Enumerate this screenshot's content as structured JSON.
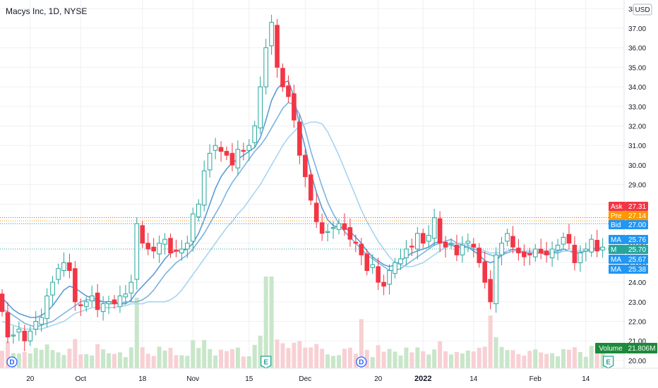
{
  "header": {
    "title": "Macys Inc, 1D, NYSE",
    "currency": "USD"
  },
  "colors": {
    "up": "#26a69a",
    "down": "#f23645",
    "up_body": "#26a69a",
    "down_body": "#f23645",
    "vol_up": "#c8e6c9",
    "vol_down": "#f8d0d4",
    "ma1": "#5b9bd5",
    "ma2": "#7cb3e0",
    "ma3": "#a8d4f0",
    "grid": "#eef0f3",
    "text": "#131722",
    "ask": "#f23645",
    "pre": "#ff9800",
    "bid": "#2196f3",
    "ma_badge": "#2196f3",
    "m_badge": "#26a69a",
    "volume_badge": "#1b8a3a"
  },
  "chart_data": {
    "type": "candlestick",
    "title": "Macys Inc, 1D, NYSE",
    "currency": "USD",
    "ylim": [
      19.6,
      38.3
    ],
    "y_ticks": [
      "38.00",
      "37.00",
      "36.00",
      "35.00",
      "34.00",
      "33.00",
      "32.00",
      "31.00",
      "30.00",
      "29.00",
      "28.00",
      "27.00",
      "26.00",
      "25.00",
      "24.00",
      "23.00",
      "22.00",
      "21.00",
      "20.00"
    ],
    "x_ticks": [
      {
        "label": "20",
        "index": 5
      },
      {
        "label": "Oct",
        "index": 14
      },
      {
        "label": "18",
        "index": 25
      },
      {
        "label": "Nov",
        "index": 34
      },
      {
        "label": "15",
        "index": 44
      },
      {
        "label": "Dec",
        "index": 54
      },
      {
        "label": "20",
        "index": 67
      },
      {
        "label": "2022",
        "index": 75,
        "bold": true
      },
      {
        "label": "14",
        "index": 84
      },
      {
        "label": "Feb",
        "index": 95
      },
      {
        "label": "14",
        "index": 104
      }
    ],
    "closes": [
      22.5,
      21.2,
      21.3,
      21.6,
      21.0,
      21.5,
      22.0,
      22.2,
      23.3,
      24.0,
      24.7,
      25.0,
      24.6,
      23.0,
      22.8,
      23.0,
      23.3,
      22.6,
      22.9,
      23.0,
      22.9,
      23.3,
      23.4,
      24.0,
      27.0,
      26.0,
      25.7,
      25.6,
      26.0,
      26.2,
      25.5,
      25.6,
      25.7,
      26.0,
      27.5,
      28.0,
      29.7,
      30.6,
      31.0,
      30.7,
      30.5,
      30.0,
      30.8,
      30.7,
      31.0,
      32.0,
      34.0,
      36.0,
      37.3,
      35.0,
      34.0,
      33.5,
      32.3,
      30.5,
      29.4,
      28.2,
      27.1,
      26.5,
      26.6,
      26.8,
      27.0,
      26.7,
      26.2,
      26.0,
      25.4,
      24.6,
      24.9,
      24.0,
      23.8,
      24.6,
      25.0,
      25.2,
      25.7,
      25.8,
      26.5,
      26.0,
      26.4,
      27.3,
      26.0,
      25.8,
      26.0,
      25.4,
      25.9,
      26.1,
      25.8,
      25.0,
      24.0,
      23.0,
      25.4,
      26.0,
      26.5,
      25.8,
      25.5,
      25.3,
      25.4,
      25.7,
      25.5,
      25.4,
      25.7,
      25.9,
      26.3,
      26.0,
      25.0,
      25.5,
      25.7,
      26.2,
      25.6,
      25.8
    ],
    "series": [
      {
        "name": "MA",
        "values": [
          23.2,
          22.9,
          22.6,
          22.4,
          22.3,
          22.2,
          22.2,
          22.3,
          22.5,
          22.8,
          23.2,
          23.6,
          23.8,
          23.7,
          23.5,
          23.3,
          23.2,
          23.1,
          23.0,
          23.0,
          23.0,
          22.9,
          22.9,
          23.1,
          23.5,
          23.8,
          24.1,
          24.4,
          24.8,
          25.2,
          25.5,
          25.6,
          25.6,
          25.7,
          26.0,
          26.5,
          27.2,
          28.0,
          28.8,
          29.4,
          29.8,
          30.1,
          30.3,
          30.5,
          30.7,
          30.9,
          31.4,
          32.3,
          33.3,
          33.9,
          34.2,
          34.3,
          33.5,
          32.0,
          30.9,
          29.6,
          28.6,
          27.8,
          27.2,
          26.9,
          26.8,
          26.8,
          26.6,
          26.3,
          26.0,
          25.6,
          25.3,
          25.1,
          24.9,
          24.8,
          24.9,
          25.1,
          25.3,
          25.5,
          25.6,
          25.7,
          25.8,
          26.0,
          26.1,
          26.0,
          25.9,
          25.8,
          25.8,
          25.8,
          25.6,
          25.4,
          25.1,
          25.0,
          25.1,
          25.4,
          25.6,
          25.7,
          25.6,
          25.5,
          25.5,
          25.5,
          25.5,
          25.4,
          25.5,
          25.6,
          25.7,
          25.6,
          25.5,
          25.5,
          25.6,
          25.7,
          25.76,
          25.76
        ]
      },
      {
        "name": "MA",
        "values": [
          22.6,
          22.5,
          22.3,
          22.1,
          21.9,
          21.8,
          21.7,
          21.8,
          21.9,
          22.0,
          22.2,
          22.4,
          22.6,
          22.8,
          23.0,
          23.1,
          23.1,
          23.0,
          23.0,
          22.9,
          22.9,
          22.9,
          23.0,
          23.0,
          23.0,
          23.1,
          23.3,
          23.6,
          24.0,
          24.4,
          24.7,
          25.0,
          25.2,
          25.4,
          25.7,
          26.1,
          26.5,
          27.0,
          27.5,
          28.0,
          28.6,
          29.1,
          29.5,
          29.9,
          30.3,
          30.7,
          31.0,
          31.4,
          31.9,
          32.4,
          32.9,
          33.2,
          33.1,
          32.6,
          31.8,
          30.7,
          29.8,
          28.9,
          28.1,
          27.5,
          27.0,
          26.6,
          26.3,
          26.0,
          25.7,
          25.4,
          25.2,
          25.0,
          24.8,
          24.6,
          24.6,
          24.7,
          24.9,
          25.1,
          25.3,
          25.5,
          25.7,
          25.9,
          26.0,
          26.1,
          26.2,
          26.0,
          25.9,
          25.8,
          25.7,
          25.6,
          25.5,
          25.4,
          25.3,
          25.4,
          25.5,
          25.6,
          25.6,
          25.6,
          25.6,
          25.6,
          25.6,
          25.5,
          25.5,
          25.5,
          25.6,
          25.6,
          25.6,
          25.6,
          25.6,
          25.6,
          25.7,
          25.7
        ]
      },
      {
        "name": "MA",
        "values": [
          22.0,
          21.9,
          21.8,
          21.7,
          21.6,
          21.6,
          21.6,
          21.6,
          21.7,
          21.8,
          21.9,
          22.0,
          22.2,
          22.4,
          22.5,
          22.6,
          22.7,
          22.7,
          22.7,
          22.7,
          22.7,
          22.8,
          22.8,
          22.9,
          22.9,
          22.9,
          23.0,
          23.0,
          23.0,
          23.0,
          23.1,
          23.3,
          23.6,
          24.0,
          24.4,
          24.8,
          25.2,
          25.6,
          26.0,
          26.4,
          26.8,
          27.1,
          27.5,
          27.8,
          28.2,
          28.6,
          29.0,
          29.5,
          30.0,
          30.5,
          31.0,
          31.4,
          31.7,
          32.0,
          32.1,
          32.2,
          32.2,
          32.1,
          31.7,
          31.1,
          30.5,
          29.8,
          29.1,
          28.4,
          27.7,
          27.1,
          26.6,
          26.1,
          25.7,
          25.3,
          25.0,
          24.9,
          24.8,
          24.8,
          24.9,
          25.0,
          25.2,
          25.4,
          25.6,
          25.8,
          25.9,
          26.0,
          26.0,
          25.9,
          25.8,
          25.7,
          25.6,
          25.5,
          25.5,
          25.5,
          25.6,
          25.6,
          25.6,
          25.6,
          25.6,
          25.6,
          25.6,
          25.6,
          25.6,
          25.6,
          25.6,
          25.6,
          25.6,
          25.6,
          25.6,
          25.6,
          25.67,
          25.67
        ]
      }
    ],
    "price_badges": [
      {
        "label": "Ask",
        "value": "27.31",
        "color": "ask"
      },
      {
        "label": "Pre",
        "value": "27.14",
        "color": "pre"
      },
      {
        "label": "Bid",
        "value": "27.00",
        "color": "bid"
      },
      {
        "label": "MA",
        "value": "25.76",
        "color": "ma_badge"
      },
      {
        "label": "M",
        "value": "25.70",
        "color": "m_badge"
      },
      {
        "label": "MA",
        "value": "25.67",
        "color": "ma_badge"
      },
      {
        "label": "MA",
        "value": "25.38",
        "color": "ma_badge"
      }
    ],
    "volume_label": "Volume",
    "volume_value": "21.806M",
    "event_markers": [
      {
        "type": "D",
        "index": 0
      },
      {
        "type": "E",
        "index": 47
      },
      {
        "type": "D",
        "index": 64
      },
      {
        "type": "E",
        "index": 108
      }
    ]
  }
}
